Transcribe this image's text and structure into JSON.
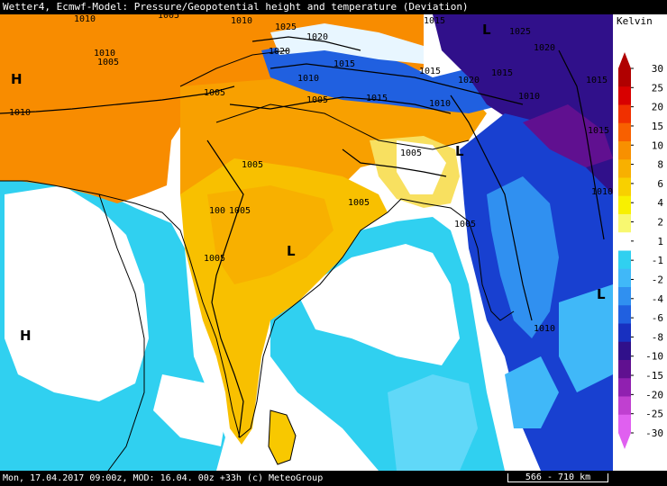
{
  "header": {
    "title": "Wetter4, Ecmwf-Model: Pressure/Geopotential height and temperature (Deviation)"
  },
  "legend": {
    "unit": "Kelvin",
    "ticks": [
      "30",
      "25",
      "20",
      "15",
      "10",
      "8",
      "6",
      "4",
      "2",
      "1",
      "-1",
      "-2",
      "-4",
      "-6",
      "-8",
      "-10",
      "-15",
      "-20",
      "-25",
      "-30"
    ],
    "colors": [
      "#b00000",
      "#d80000",
      "#f03000",
      "#f86000",
      "#f89000",
      "#f8b000",
      "#f8d000",
      "#f8f000",
      "#f8f870",
      "#ffffff",
      "#30d0f0",
      "#40b8f8",
      "#3090f0",
      "#2060e0",
      "#1830c0",
      "#30108a",
      "#601090",
      "#9020b0",
      "#c040d0",
      "#e060f0"
    ]
  },
  "map": {
    "isobar_labels": [
      "1010",
      "1005",
      "1010",
      "1020",
      "1025",
      "1015",
      "1010",
      "1005",
      "1010",
      "1025",
      "1020",
      "1020",
      "1015",
      "1015",
      "1010",
      "1020",
      "1015",
      "1010",
      "1015",
      "1015",
      "1005",
      "1005",
      "1005",
      "100",
      "1005",
      "1005",
      "1005",
      "1005",
      "1010",
      "1010",
      "1005",
      "1015",
      "1010"
    ],
    "pressure_markers": [
      "H",
      "H",
      "L",
      "L",
      "L",
      "L",
      "H"
    ]
  },
  "footer": {
    "text": "Mon, 17.04.2017 09:00z, MOD: 16.04. 00z +33h (c) MeteoGroup",
    "scale_label": "566 - 710 km"
  }
}
